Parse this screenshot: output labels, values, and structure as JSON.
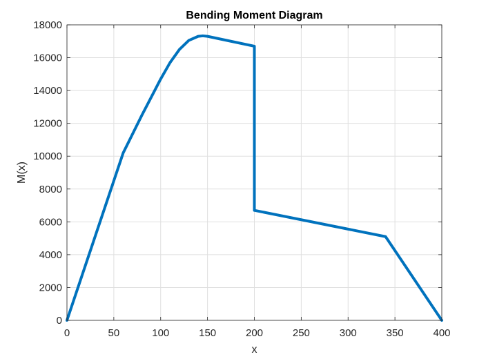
{
  "chart_data": {
    "type": "line",
    "title": "Bending Moment Diagram",
    "xlabel": "x",
    "ylabel": "M(x)",
    "xlim": [
      0,
      400
    ],
    "ylim": [
      0,
      18000
    ],
    "xticks": [
      0,
      50,
      100,
      150,
      200,
      250,
      300,
      350,
      400
    ],
    "yticks": [
      0,
      2000,
      4000,
      6000,
      8000,
      10000,
      12000,
      14000,
      16000,
      18000
    ],
    "grid": true,
    "legend": "none",
    "series": [
      {
        "color": "#0072BD",
        "x": [
          0,
          60,
          80,
          100,
          110,
          120,
          130,
          140,
          145,
          150,
          200,
          200,
          340,
          400
        ],
        "y": [
          0,
          10200,
          12500,
          14700,
          15700,
          16500,
          17050,
          17300,
          17330,
          17300,
          16700,
          6700,
          5100,
          0
        ]
      }
    ]
  }
}
